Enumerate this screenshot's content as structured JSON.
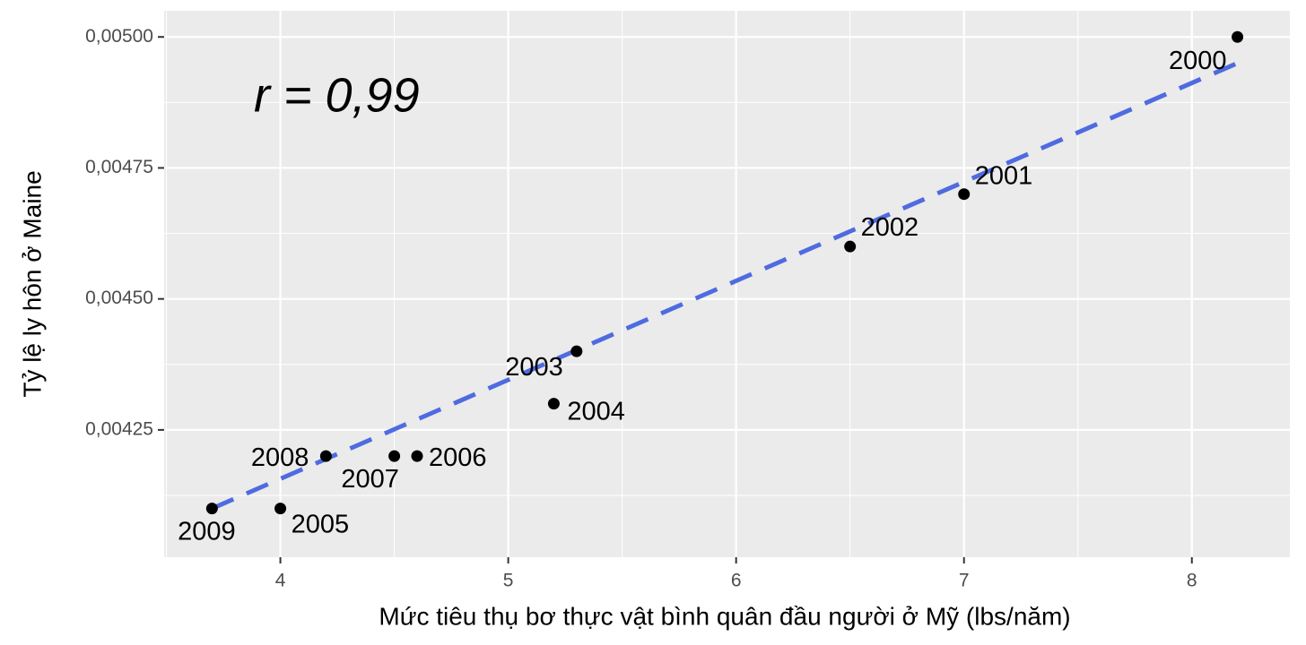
{
  "chart_data": {
    "type": "scatter",
    "x_label": "Mức tiêu thụ bơ thực vật bình quân đầu người ở Mỹ (lbs/năm)",
    "y_label": "Tỷ lệ ly hôn ở Maine",
    "annotation": "r = 0,99",
    "x": [
      8.2,
      7.0,
      6.5,
      5.3,
      5.2,
      4.0,
      4.6,
      4.5,
      4.2,
      3.7
    ],
    "values": [
      0.005,
      0.0047,
      0.0046,
      0.0044,
      0.0043,
      0.0041,
      0.0042,
      0.0042,
      0.0042,
      0.0041
    ],
    "labels": [
      "2000",
      "2001",
      "2002",
      "2003",
      "2004",
      "2005",
      "2006",
      "2007",
      "2008",
      "2009"
    ],
    "color": "#000000",
    "trend_line": {
      "x": [
        3.7,
        8.2
      ],
      "values": [
        0.0041,
        0.00495
      ],
      "color": "#4f6be0"
    },
    "xlim": [
      3.49,
      8.43
    ],
    "ylim": [
      0.004007,
      0.00505
    ],
    "xticks": [
      4,
      5,
      6,
      7,
      8
    ],
    "yticks": [
      {
        "value": 0.00425,
        "label": "0,00425"
      },
      {
        "value": 0.0045,
        "label": "0,00450"
      },
      {
        "value": 0.00475,
        "label": "0,00475"
      },
      {
        "value": 0.005,
        "label": "0,00500"
      }
    ],
    "grid": true
  }
}
